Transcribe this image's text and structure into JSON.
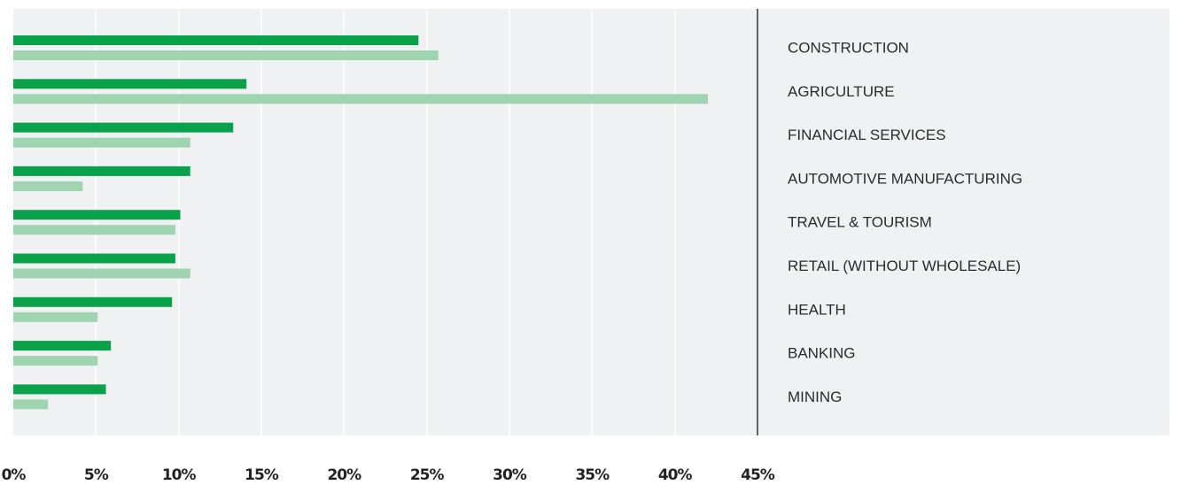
{
  "chart_data": {
    "type": "hbar",
    "categories": [
      "CONSTRUCTION",
      "AGRICULTURE",
      "FINANCIAL SERVICES",
      "AUTOMOTIVE MANUFACTURING",
      "TRAVEL & TOURISM",
      "RETAIL (WITHOUT WHOLESALE)",
      "HEALTH",
      "BANKING",
      "MINING"
    ],
    "series": [
      {
        "color": "#0aa14b",
        "values": [
          24.5,
          14.1,
          13.3,
          10.7,
          10.1,
          9.8,
          9.6,
          5.9,
          5.6
        ]
      },
      {
        "color": "#9fd4b0",
        "values": [
          25.7,
          42.0,
          10.7,
          4.2,
          9.8,
          10.7,
          5.1,
          5.1,
          2.1
        ]
      }
    ],
    "xlim": [
      0,
      45
    ],
    "xticks": [
      {
        "value": 0,
        "label": "0%"
      },
      {
        "value": 5,
        "label": "5%"
      },
      {
        "value": 10,
        "label": "10%"
      },
      {
        "value": 15,
        "label": "15%"
      },
      {
        "value": 20,
        "label": "20%"
      },
      {
        "value": 25,
        "label": "25%"
      },
      {
        "value": 30,
        "label": "30%"
      },
      {
        "value": 35,
        "label": "35%"
      },
      {
        "value": 40,
        "label": "40%"
      },
      {
        "value": 45,
        "label": "45%"
      }
    ],
    "grid": true
  }
}
